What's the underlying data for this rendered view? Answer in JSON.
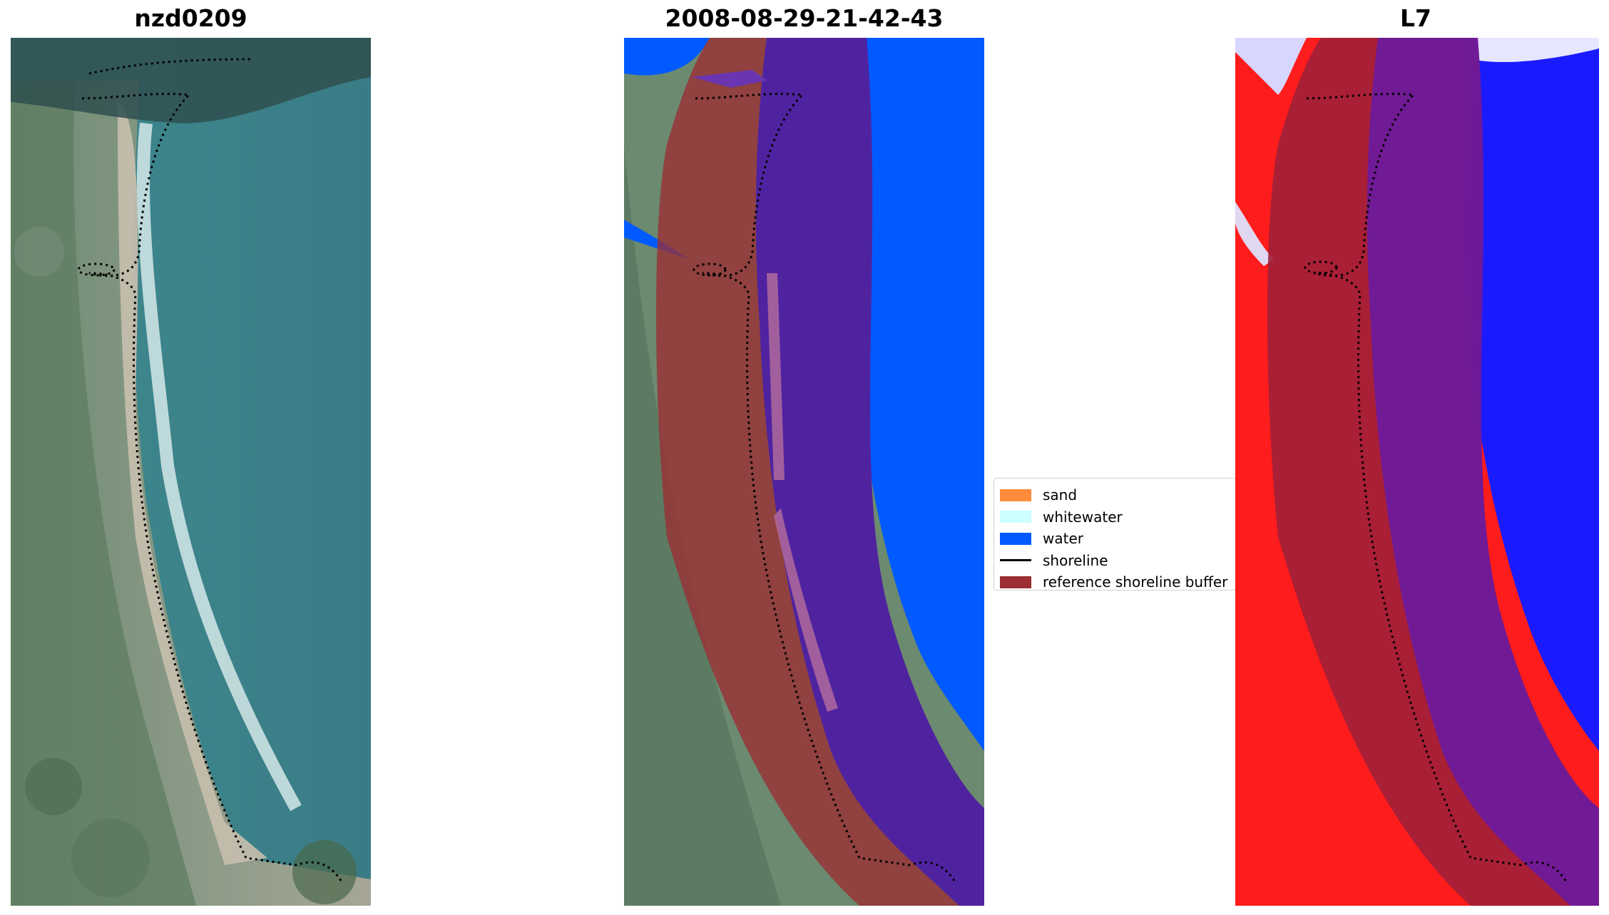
{
  "panels": [
    {
      "title": "nzd0209"
    },
    {
      "title": "2008-08-29-21-42-43"
    },
    {
      "title": "L7"
    }
  ],
  "legend": {
    "items": [
      {
        "label": "sand",
        "color": "#ff8c3a",
        "kind": "patch"
      },
      {
        "label": "whitewater",
        "color": "#ccffff",
        "kind": "patch"
      },
      {
        "label": "water",
        "color": "#005aff",
        "kind": "patch"
      },
      {
        "label": "shoreline",
        "color": "#000000",
        "kind": "line"
      },
      {
        "label": "reference shoreline buffer",
        "color": "#9b2d33",
        "kind": "patch"
      }
    ]
  },
  "colors": {
    "land_green": "#5f7d62",
    "sea_teal": "#3b8087",
    "beach_sand": "#c9bfae",
    "surf": "#e8f4f4",
    "water_class": "#005aff",
    "buffer": "#9b2d33",
    "buffer_over_water": "#4f23a0",
    "index_red": "#ff1c1c",
    "index_blue": "#1a1aff"
  }
}
